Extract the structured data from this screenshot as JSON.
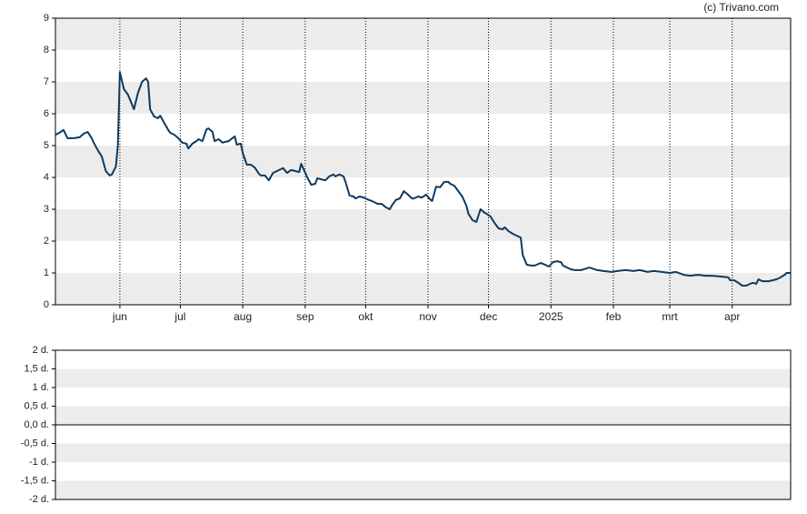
{
  "chart_data": [
    {
      "type": "line",
      "source": "(c) Trivano.com",
      "x": [
        -32,
        -30,
        -28,
        -26,
        -23,
        -20,
        -18,
        -16,
        -14,
        -13,
        -11,
        -9,
        -7,
        -5,
        -4,
        -2,
        -1,
        0,
        2,
        4,
        6,
        7,
        9,
        11,
        13,
        14,
        15,
        17,
        19,
        20,
        22,
        24,
        25,
        27,
        29,
        31,
        33,
        34,
        36,
        38,
        39,
        41,
        43,
        44,
        46,
        47,
        49,
        51,
        52,
        54,
        57,
        58,
        60,
        61,
        63,
        65,
        67,
        69,
        70,
        72,
        74,
        76,
        78,
        80,
        81,
        83,
        85,
        87,
        89,
        90,
        91,
        93,
        95,
        97,
        98,
        100,
        102,
        104,
        106,
        107,
        109,
        111,
        112,
        114,
        116,
        117,
        119,
        121,
        123,
        125,
        126,
        128,
        130,
        132,
        134,
        135,
        137,
        139,
        141,
        143,
        145,
        146,
        148,
        150,
        152,
        154,
        155,
        157,
        159,
        161,
        163,
        164,
        166,
        168,
        170,
        172,
        173,
        175,
        177,
        179,
        181,
        182,
        184,
        186,
        188,
        190,
        191,
        193,
        195,
        197,
        199,
        200,
        202,
        204,
        206,
        208,
        209,
        211,
        213,
        215,
        217,
        219,
        220,
        222,
        224,
        226,
        229,
        233,
        237,
        240,
        244,
        247,
        251,
        255,
        258,
        262,
        265,
        269,
        273,
        276,
        280,
        283,
        287,
        291,
        294,
        298,
        302,
        303,
        305,
        307,
        309,
        311,
        312,
        314,
        316,
        317,
        319,
        320,
        322,
        324,
        326,
        328,
        330,
        331,
        333
      ],
      "values": [
        5.34,
        5.4,
        5.49,
        5.23,
        5.23,
        5.26,
        5.37,
        5.43,
        5.23,
        5.09,
        4.86,
        4.66,
        4.2,
        4.06,
        4.09,
        4.34,
        5.0,
        7.31,
        6.77,
        6.6,
        6.29,
        6.14,
        6.66,
        7.0,
        7.11,
        7.0,
        6.14,
        5.91,
        5.86,
        5.94,
        5.71,
        5.49,
        5.4,
        5.34,
        5.23,
        5.09,
        5.06,
        4.91,
        5.06,
        5.14,
        5.2,
        5.14,
        5.51,
        5.54,
        5.43,
        5.14,
        5.2,
        5.09,
        5.11,
        5.14,
        5.29,
        5.03,
        5.06,
        4.77,
        4.4,
        4.4,
        4.31,
        4.11,
        4.06,
        4.06,
        3.91,
        4.14,
        4.2,
        4.26,
        4.29,
        4.14,
        4.23,
        4.2,
        4.17,
        4.43,
        4.29,
        4.0,
        3.77,
        3.8,
        3.97,
        3.94,
        3.91,
        4.03,
        4.09,
        4.03,
        4.09,
        4.03,
        3.86,
        3.43,
        3.4,
        3.34,
        3.4,
        3.37,
        3.31,
        3.26,
        3.23,
        3.17,
        3.17,
        3.06,
        3.0,
        3.11,
        3.29,
        3.34,
        3.57,
        3.46,
        3.34,
        3.34,
        3.4,
        3.37,
        3.46,
        3.31,
        3.26,
        3.71,
        3.69,
        3.86,
        3.86,
        3.8,
        3.74,
        3.57,
        3.4,
        3.11,
        2.86,
        2.66,
        2.6,
        3.0,
        2.89,
        2.86,
        2.77,
        2.57,
        2.4,
        2.37,
        2.43,
        2.31,
        2.23,
        2.17,
        2.11,
        1.57,
        1.26,
        1.23,
        1.23,
        1.29,
        1.31,
        1.26,
        1.2,
        1.34,
        1.37,
        1.34,
        1.23,
        1.17,
        1.11,
        1.09,
        1.09,
        1.17,
        1.09,
        1.06,
        1.03,
        1.06,
        1.09,
        1.06,
        1.09,
        1.03,
        1.06,
        1.03,
        1.0,
        1.03,
        0.94,
        0.91,
        0.94,
        0.91,
        0.91,
        0.89,
        0.86,
        0.77,
        0.77,
        0.69,
        0.6,
        0.6,
        0.63,
        0.69,
        0.66,
        0.8,
        0.74,
        0.74,
        0.74,
        0.77,
        0.8,
        0.86,
        0.94,
        1.0,
        1.0
      ],
      "color": "#0e3a5e",
      "xlim": [
        -32,
        333
      ],
      "xticks": [
        {
          "value": 0,
          "label": "jun"
        },
        {
          "value": 30,
          "label": "jul"
        },
        {
          "value": 61,
          "label": "aug"
        },
        {
          "value": 92,
          "label": "sep"
        },
        {
          "value": 122,
          "label": "okt"
        },
        {
          "value": 153,
          "label": "nov"
        },
        {
          "value": 183,
          "label": "dec"
        },
        {
          "value": 214,
          "label": "2025"
        },
        {
          "value": 245,
          "label": "feb"
        },
        {
          "value": 273,
          "label": "mrt"
        },
        {
          "value": 304,
          "label": "apr"
        }
      ],
      "ylim": [
        0,
        9
      ],
      "yticks": [
        0,
        1,
        2,
        3,
        4,
        5,
        6,
        7,
        8,
        9
      ],
      "grid": "bands"
    },
    {
      "type": "line",
      "ylim": [
        -2,
        2
      ],
      "yticks": [
        {
          "value": -2,
          "label": "-2 d."
        },
        {
          "value": -1.5,
          "label": "-1,5 d."
        },
        {
          "value": -1,
          "label": "-1 d."
        },
        {
          "value": -0.5,
          "label": "-0,5 d."
        },
        {
          "value": 0,
          "label": "0,0 d."
        },
        {
          "value": 0.5,
          "label": "0,5 d."
        },
        {
          "value": 1,
          "label": "1 d."
        },
        {
          "value": 1.5,
          "label": "1,5 d."
        },
        {
          "value": 2,
          "label": "2 d."
        }
      ],
      "grid": "bands",
      "zero_line": true
    }
  ]
}
